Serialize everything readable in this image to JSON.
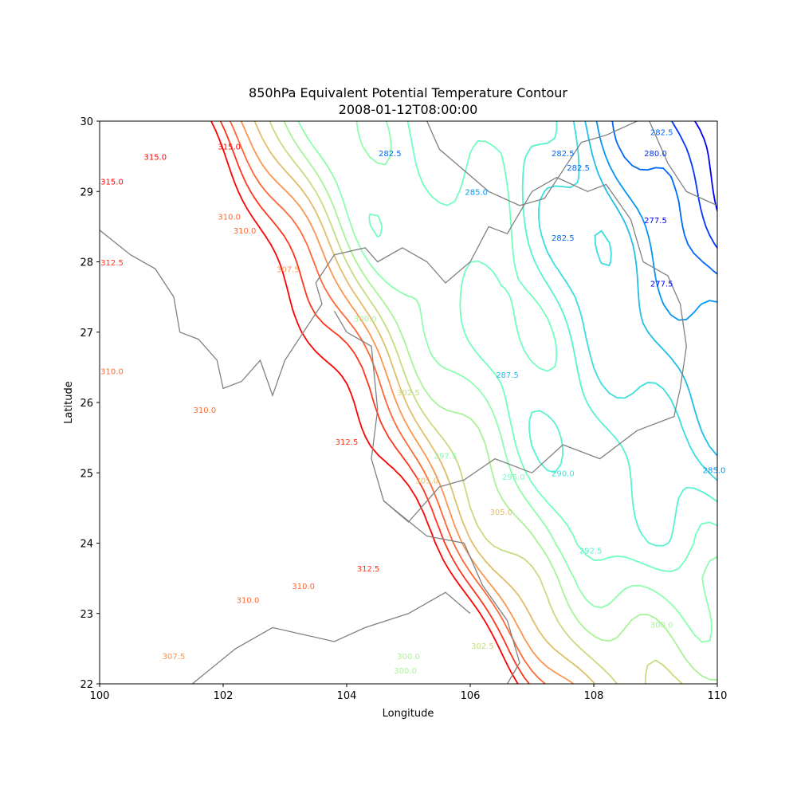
{
  "chart_data": {
    "type": "contour",
    "title": "850hPa Equivalent Potential Temperature Contour",
    "subtitle": "2008-01-12T08:00:00",
    "xlabel": "Longitude",
    "ylabel": "Latitude",
    "xlim": [
      100,
      110
    ],
    "ylim": [
      22,
      30
    ],
    "xticks": [
      "100",
      "102",
      "104",
      "106",
      "108",
      "110"
    ],
    "yticks": [
      "22",
      "23",
      "24",
      "25",
      "26",
      "27",
      "28",
      "29",
      "30"
    ],
    "grid": false,
    "colormap": "rainbow",
    "contour_levels": [
      277.5,
      280.0,
      282.5,
      285.0,
      287.5,
      290.0,
      292.5,
      295.0,
      297.5,
      300.0,
      302.5,
      305.0,
      307.5,
      310.0,
      312.5,
      315.0
    ],
    "contour_labels": [
      {
        "text": "315.0",
        "lon": 100.9,
        "lat": 29.45,
        "level": 315.0
      },
      {
        "text": "315.0",
        "lon": 100.2,
        "lat": 29.1,
        "level": 315.0
      },
      {
        "text": "315.0",
        "lon": 102.1,
        "lat": 29.6,
        "level": 315.0
      },
      {
        "text": "312.5",
        "lon": 100.2,
        "lat": 27.95,
        "level": 312.5
      },
      {
        "text": "310.0",
        "lon": 102.1,
        "lat": 28.6,
        "level": 310.0
      },
      {
        "text": "310.0",
        "lon": 102.35,
        "lat": 28.4,
        "level": 310.0
      },
      {
        "text": "307.5",
        "lon": 103.05,
        "lat": 27.85,
        "level": 307.5
      },
      {
        "text": "310.0",
        "lon": 100.2,
        "lat": 26.4,
        "level": 310.0
      },
      {
        "text": "310.0",
        "lon": 101.7,
        "lat": 25.85,
        "level": 310.0
      },
      {
        "text": "312.5",
        "lon": 104.0,
        "lat": 25.4,
        "level": 312.5
      },
      {
        "text": "300.0",
        "lon": 104.3,
        "lat": 27.15,
        "level": 300.0
      },
      {
        "text": "302.5",
        "lon": 105.0,
        "lat": 26.1,
        "level": 302.5
      },
      {
        "text": "297.5",
        "lon": 105.6,
        "lat": 25.2,
        "level": 297.5
      },
      {
        "text": "305.0",
        "lon": 105.3,
        "lat": 24.85,
        "level": 305.0
      },
      {
        "text": "305.0",
        "lon": 106.5,
        "lat": 24.4,
        "level": 305.0
      },
      {
        "text": "295.0",
        "lon": 106.7,
        "lat": 24.9,
        "level": 295.0
      },
      {
        "text": "290.0",
        "lon": 107.5,
        "lat": 24.95,
        "level": 290.0
      },
      {
        "text": "287.5",
        "lon": 106.6,
        "lat": 26.35,
        "level": 287.5
      },
      {
        "text": "285.0",
        "lon": 106.1,
        "lat": 28.95,
        "level": 285.0
      },
      {
        "text": "282.5",
        "lon": 104.7,
        "lat": 29.5,
        "level": 282.5
      },
      {
        "text": "282.5",
        "lon": 107.5,
        "lat": 28.3,
        "level": 282.5
      },
      {
        "text": "282.5",
        "lon": 107.5,
        "lat": 29.5,
        "level": 282.5
      },
      {
        "text": "282.5",
        "lon": 107.75,
        "lat": 29.3,
        "level": 282.5
      },
      {
        "text": "282.5",
        "lon": 109.1,
        "lat": 29.8,
        "level": 282.5
      },
      {
        "text": "280.0",
        "lon": 109.0,
        "lat": 29.5,
        "level": 280.0
      },
      {
        "text": "277.5",
        "lon": 109.0,
        "lat": 28.55,
        "level": 277.5
      },
      {
        "text": "277.5",
        "lon": 109.1,
        "lat": 27.65,
        "level": 277.5
      },
      {
        "text": "285.0",
        "lon": 109.95,
        "lat": 25.0,
        "level": 285.0
      },
      {
        "text": "292.5",
        "lon": 107.95,
        "lat": 23.85,
        "level": 292.5
      },
      {
        "text": "300.0",
        "lon": 109.1,
        "lat": 22.8,
        "level": 300.0
      },
      {
        "text": "312.5",
        "lon": 104.35,
        "lat": 23.6,
        "level": 312.5
      },
      {
        "text": "310.0",
        "lon": 103.3,
        "lat": 23.35,
        "level": 310.0
      },
      {
        "text": "310.0",
        "lon": 102.4,
        "lat": 23.15,
        "level": 310.0
      },
      {
        "text": "307.5",
        "lon": 101.2,
        "lat": 22.35,
        "level": 307.5
      },
      {
        "text": "302.5",
        "lon": 106.2,
        "lat": 22.5,
        "level": 302.5
      },
      {
        "text": "300.0",
        "lon": 105.0,
        "lat": 22.35,
        "level": 300.0
      },
      {
        "text": "300.0",
        "lon": 104.95,
        "lat": 22.15,
        "level": 300.0
      }
    ],
    "boundary_color": "#808080"
  }
}
